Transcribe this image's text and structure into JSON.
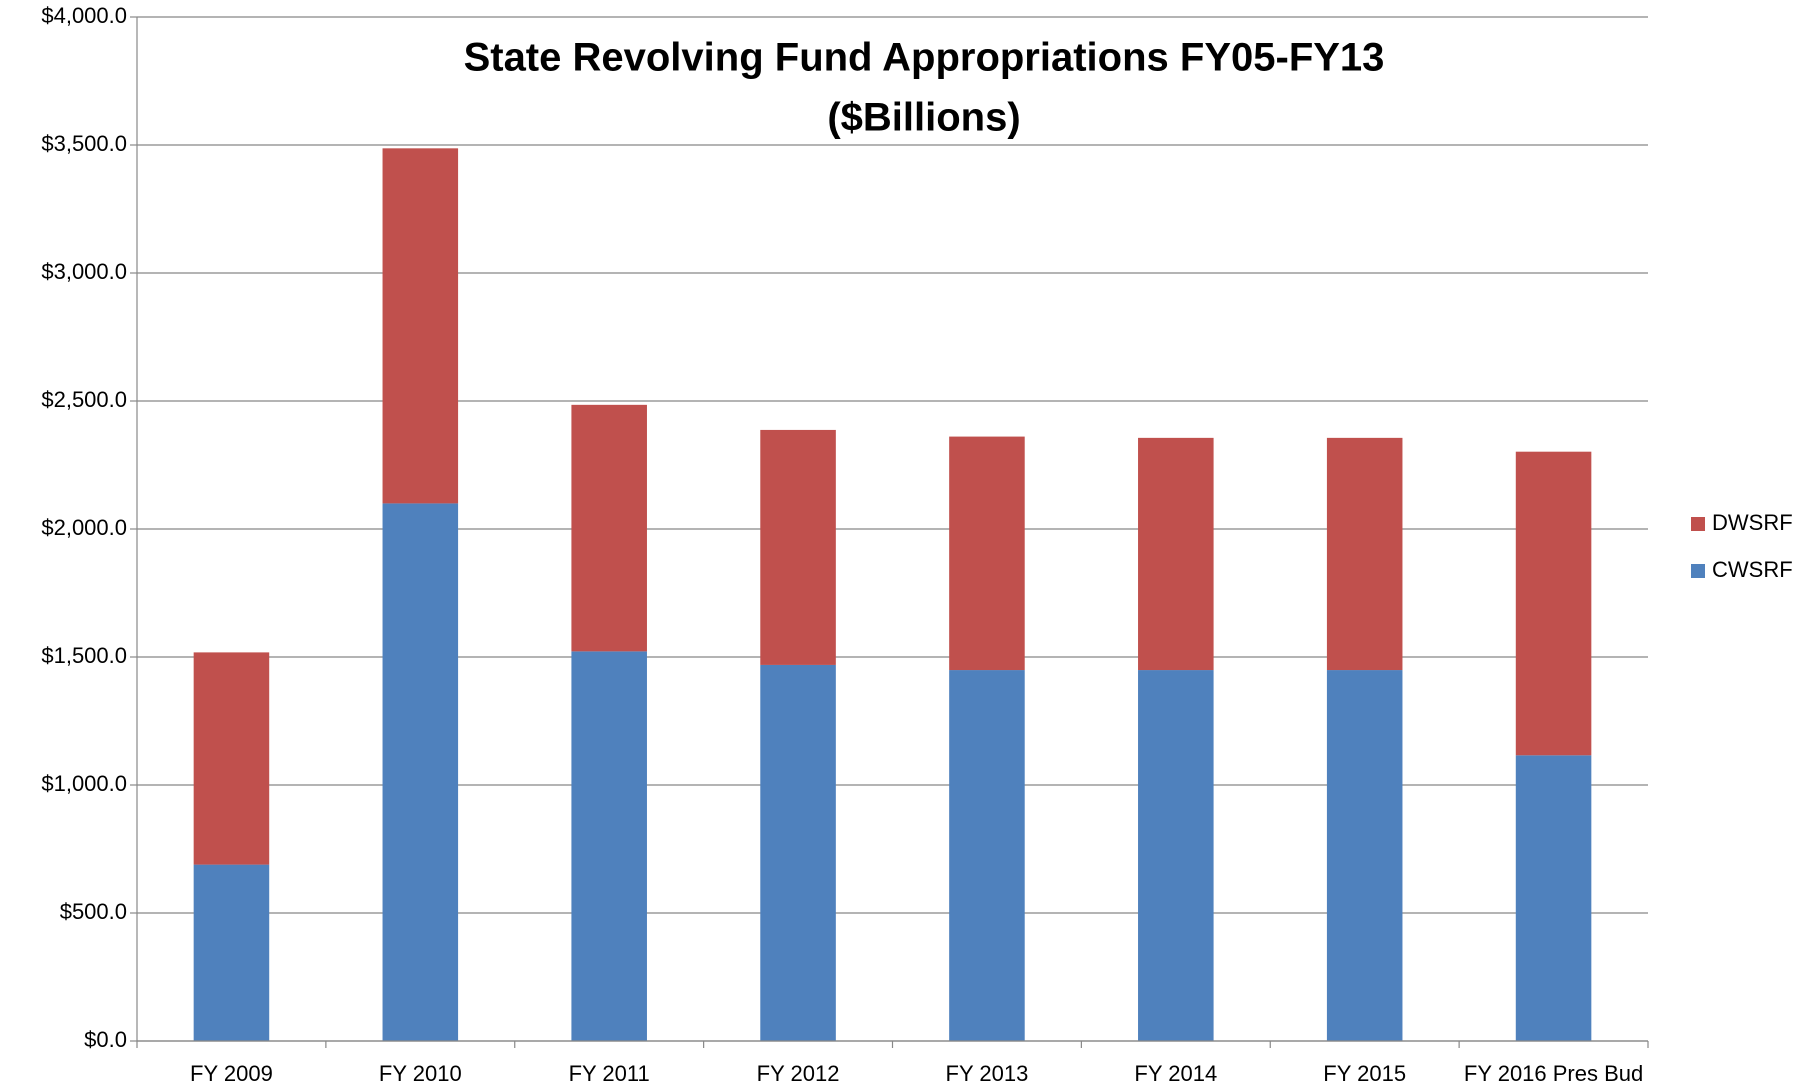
{
  "chart_data": {
    "type": "bar",
    "stacked": true,
    "title": "State Revolving Fund Appropriations FY05-FY13",
    "subtitle": "($Billions)",
    "categories": [
      "FY 2009",
      "FY 2010",
      "FY 2011",
      "FY 2012",
      "FY 2013",
      "FY 2014",
      "FY 2015",
      "FY 2016 Pres Bud"
    ],
    "series": [
      {
        "name": "CWSRF",
        "color": "#4f81bd",
        "values": [
          689,
          2100,
          1522,
          1469,
          1449,
          1449,
          1449,
          1116
        ]
      },
      {
        "name": "DWSRF",
        "color": "#c0504d",
        "values": [
          829,
          1387,
          963,
          918,
          912,
          907,
          907,
          1186
        ]
      }
    ],
    "ylim": [
      0,
      4000
    ],
    "yticks": [
      {
        "value": 0,
        "label": "$0.0"
      },
      {
        "value": 500,
        "label": "$500.0"
      },
      {
        "value": 1000,
        "label": "$1,000.0"
      },
      {
        "value": 1500,
        "label": "$1,500.0"
      },
      {
        "value": 2000,
        "label": "$2,000.0"
      },
      {
        "value": 2500,
        "label": "$2,500.0"
      },
      {
        "value": 3000,
        "label": "$3,000.0"
      },
      {
        "value": 3500,
        "label": "$3,500.0"
      },
      {
        "value": 4000,
        "label": "$4,000.0"
      }
    ],
    "grid": true,
    "legend": "right"
  }
}
